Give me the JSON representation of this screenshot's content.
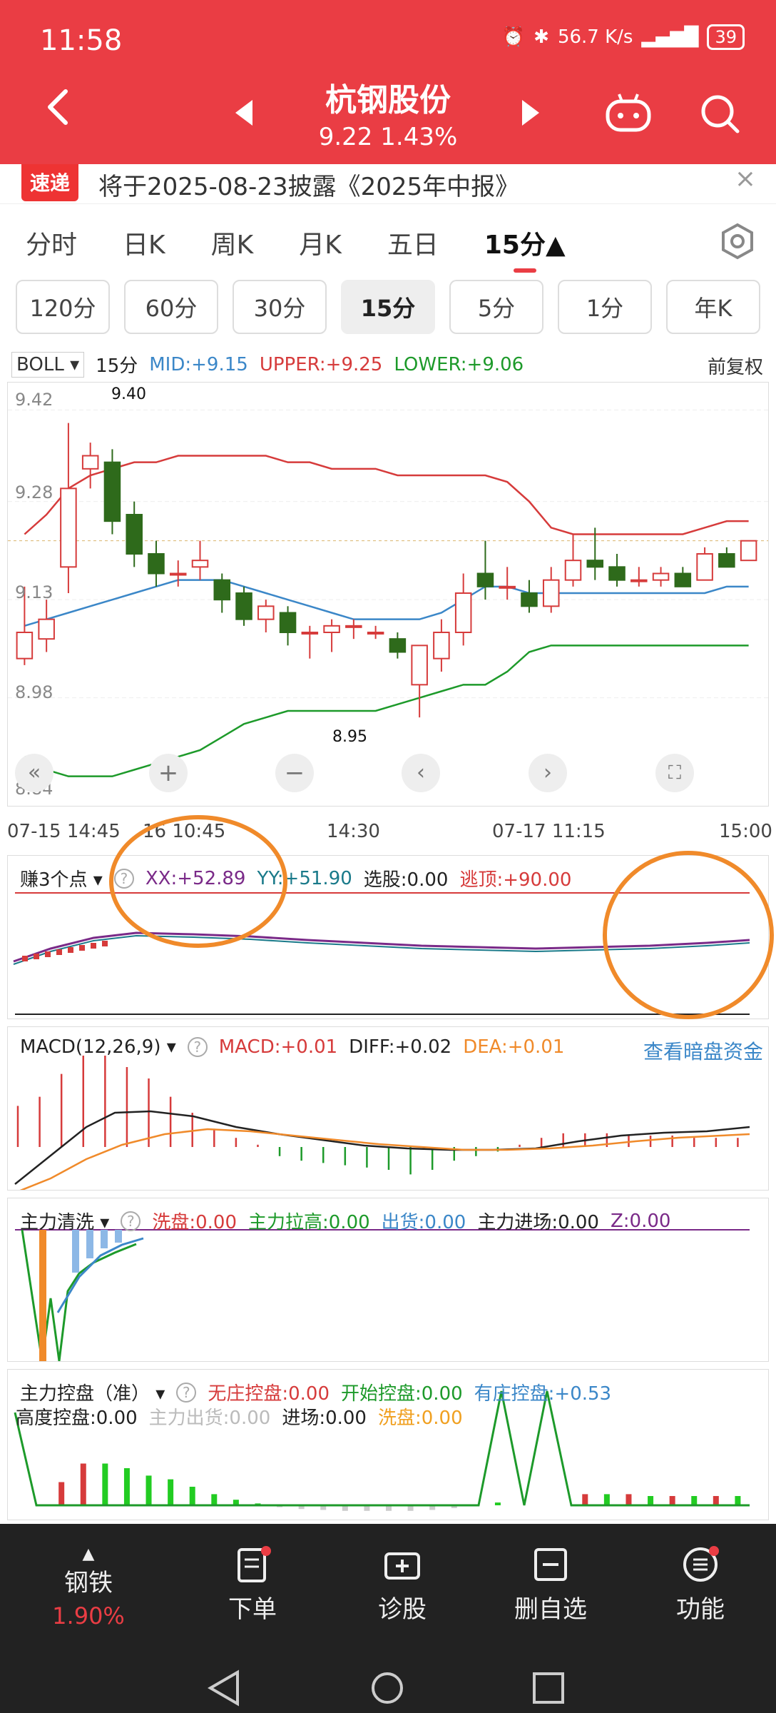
{
  "status": {
    "time": "11:58",
    "speed": "56.7 K/s",
    "battery": "39"
  },
  "header": {
    "title": "杭钢股份",
    "price": "9.22",
    "change_pct": "1.43%"
  },
  "announce": {
    "logo": "速递",
    "text": "将于2025-08-23披露《2025年中报》",
    "close": "×"
  },
  "tabs": [
    "分时",
    "日K",
    "周K",
    "月K",
    "五日",
    "15分▲"
  ],
  "active_tab_index": 5,
  "subtabs": [
    "120分",
    "60分",
    "30分",
    "15分",
    "5分",
    "1分",
    "年K"
  ],
  "active_subtab_index": 3,
  "boll_legend": {
    "name": "BOLL",
    "period": "15分",
    "mid": "MID:+9.15",
    "upper": "UPPER:+9.25",
    "lower": "LOWER:+9.06",
    "adjust": "前复权"
  },
  "price_axis": [
    "9.42",
    "9.28",
    "9.13",
    "8.98",
    "8.84"
  ],
  "annotations": {
    "high": "9.40",
    "low": "8.95"
  },
  "time_axis": [
    "07-15 14:45",
    "16 10:45",
    "14:30",
    "07-17 11:15",
    "15:00"
  ],
  "indicator1": {
    "name": "赚3个点",
    "xx": "XX:+52.89",
    "yy": "YY:+51.90",
    "xg": "选股:0.00",
    "td": "逃顶:+90.00"
  },
  "macd": {
    "name": "MACD(12,26,9)",
    "macd": "MACD:+0.01",
    "diff": "DIFF:+0.02",
    "dea": "DEA:+0.01",
    "link": "查看暗盘资金"
  },
  "indicator3": {
    "name": "主力清洗",
    "xp": "洗盘:0.00",
    "lg": "主力拉高:0.00",
    "ch": "出货:0.00",
    "jc": "主力进场:0.00",
    "z": "Z:0.00"
  },
  "indicator4": {
    "name": "主力控盘（准）",
    "wz": "无庄控盘:0.00",
    "ks": "开始控盘:0.00",
    "yz": "有庄控盘:+0.53",
    "gd": "高度控盘:0.00",
    "ch": "主力出货:0.00",
    "jc": "进场:0.00",
    "xp": "洗盘:0.00"
  },
  "nav": [
    {
      "label": "钢铁",
      "sub": "1.90%"
    },
    {
      "label": "下单"
    },
    {
      "label": "诊股"
    },
    {
      "label": "删自选"
    },
    {
      "label": "功能"
    }
  ],
  "colors": {
    "brand": "#ea3d44",
    "up": "#d63b3b",
    "down": "#2e6a1b",
    "mid": "#3b87c8",
    "lower": "#1d9a2a",
    "orange": "#f08a2a"
  },
  "chart_data": {
    "type": "candlestick",
    "period": "15分",
    "candles": [
      {
        "o": 9.04,
        "c": 9.08,
        "h": 9.15,
        "l": 9.03
      },
      {
        "o": 9.07,
        "c": 9.1,
        "h": 9.13,
        "l": 9.05
      },
      {
        "o": 9.18,
        "c": 9.3,
        "h": 9.4,
        "l": 9.14
      },
      {
        "o": 9.33,
        "c": 9.35,
        "h": 9.37,
        "l": 9.3
      },
      {
        "o": 9.34,
        "c": 9.25,
        "h": 9.36,
        "l": 9.23
      },
      {
        "o": 9.26,
        "c": 9.2,
        "h": 9.28,
        "l": 9.18
      },
      {
        "o": 9.2,
        "c": 9.17,
        "h": 9.22,
        "l": 9.15
      },
      {
        "o": 9.17,
        "c": 9.17,
        "h": 9.19,
        "l": 9.15
      },
      {
        "o": 9.18,
        "c": 9.19,
        "h": 9.22,
        "l": 9.16
      },
      {
        "o": 9.16,
        "c": 9.13,
        "h": 9.17,
        "l": 9.11
      },
      {
        "o": 9.14,
        "c": 9.1,
        "h": 9.15,
        "l": 9.09
      },
      {
        "o": 9.1,
        "c": 9.12,
        "h": 9.13,
        "l": 9.08
      },
      {
        "o": 9.11,
        "c": 9.08,
        "h": 9.12,
        "l": 9.06
      },
      {
        "o": 9.08,
        "c": 9.08,
        "h": 9.09,
        "l": 9.04
      },
      {
        "o": 9.08,
        "c": 9.09,
        "h": 9.1,
        "l": 9.05
      },
      {
        "o": 9.09,
        "c": 9.09,
        "h": 9.1,
        "l": 9.07
      },
      {
        "o": 9.08,
        "c": 9.08,
        "h": 9.09,
        "l": 9.07
      },
      {
        "o": 9.07,
        "c": 9.05,
        "h": 9.08,
        "l": 9.04
      },
      {
        "o": 9.0,
        "c": 9.06,
        "h": 9.06,
        "l": 8.95
      },
      {
        "o": 9.04,
        "c": 9.08,
        "h": 9.1,
        "l": 9.02
      },
      {
        "o": 9.08,
        "c": 9.14,
        "h": 9.17,
        "l": 9.06
      },
      {
        "o": 9.17,
        "c": 9.15,
        "h": 9.22,
        "l": 9.13
      },
      {
        "o": 9.15,
        "c": 9.15,
        "h": 9.18,
        "l": 9.13
      },
      {
        "o": 9.14,
        "c": 9.12,
        "h": 9.16,
        "l": 9.11
      },
      {
        "o": 9.12,
        "c": 9.16,
        "h": 9.18,
        "l": 9.11
      },
      {
        "o": 9.16,
        "c": 9.19,
        "h": 9.23,
        "l": 9.15
      },
      {
        "o": 9.19,
        "c": 9.18,
        "h": 9.24,
        "l": 9.16
      },
      {
        "o": 9.18,
        "c": 9.16,
        "h": 9.2,
        "l": 9.15
      },
      {
        "o": 9.16,
        "c": 9.16,
        "h": 9.18,
        "l": 9.15
      },
      {
        "o": 9.16,
        "c": 9.17,
        "h": 9.18,
        "l": 9.15
      },
      {
        "o": 9.17,
        "c": 9.15,
        "h": 9.18,
        "l": 9.15
      },
      {
        "o": 9.16,
        "c": 9.2,
        "h": 9.21,
        "l": 9.16
      },
      {
        "o": 9.2,
        "c": 9.18,
        "h": 9.21,
        "l": 9.18
      },
      {
        "o": 9.19,
        "c": 9.22,
        "h": 9.22,
        "l": 9.19
      }
    ],
    "upper": [
      9.23,
      9.26,
      9.3,
      9.32,
      9.33,
      9.34,
      9.34,
      9.35,
      9.35,
      9.35,
      9.35,
      9.35,
      9.34,
      9.34,
      9.33,
      9.33,
      9.33,
      9.32,
      9.32,
      9.32,
      9.32,
      9.32,
      9.31,
      9.28,
      9.24,
      9.23,
      9.23,
      9.23,
      9.23,
      9.23,
      9.23,
      9.24,
      9.25,
      9.25
    ],
    "mid": [
      9.09,
      9.1,
      9.11,
      9.12,
      9.13,
      9.14,
      9.15,
      9.16,
      9.16,
      9.16,
      9.15,
      9.14,
      9.13,
      9.12,
      9.11,
      9.1,
      9.1,
      9.1,
      9.1,
      9.11,
      9.13,
      9.15,
      9.15,
      9.14,
      9.14,
      9.14,
      9.14,
      9.14,
      9.14,
      9.14,
      9.14,
      9.14,
      9.15,
      9.15
    ],
    "lower": [
      8.89,
      8.87,
      8.86,
      8.86,
      8.86,
      8.87,
      8.88,
      8.89,
      8.9,
      8.92,
      8.94,
      8.95,
      8.96,
      8.96,
      8.96,
      8.96,
      8.96,
      8.97,
      8.98,
      8.99,
      9.0,
      9.0,
      9.02,
      9.05,
      9.06,
      9.06,
      9.06,
      9.06,
      9.06,
      9.06,
      9.06,
      9.06,
      9.06,
      9.06
    ],
    "ylim": [
      8.84,
      9.44
    ],
    "macd_hist": [
      0.018,
      0.022,
      0.032,
      0.04,
      0.04,
      0.035,
      0.03,
      0.022,
      0.015,
      0.008,
      0.004,
      0.001,
      -0.004,
      -0.006,
      -0.007,
      -0.008,
      -0.009,
      -0.01,
      -0.012,
      -0.01,
      -0.006,
      -0.004,
      -0.002,
      0.001,
      0.004,
      0.006,
      0.006,
      0.006,
      0.005,
      0.005,
      0.005,
      0.004,
      0.004,
      0.004
    ],
    "ctrl_bars": [
      0,
      0,
      0.25,
      0.45,
      0.45,
      0.4,
      0.32,
      0.28,
      0.2,
      0.12,
      0.06,
      0.02,
      -0.02,
      -0.04,
      -0.05,
      -0.06,
      -0.06,
      -0.06,
      -0.06,
      -0.05,
      -0.03,
      0,
      0.03,
      0,
      0,
      0,
      0.12,
      0.12,
      0.12,
      0.1,
      0.1,
      0.1,
      0.1,
      0.1
    ]
  }
}
